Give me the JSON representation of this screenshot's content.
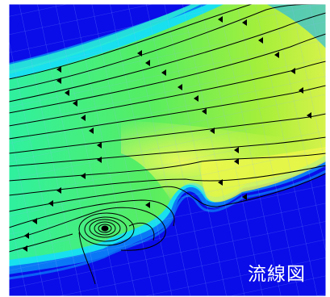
{
  "caption": "流線図",
  "colors": {
    "background": "#0a0de8",
    "colormap": [
      "#0a0de8",
      "#0a3cf0",
      "#0a78f6",
      "#10b4f8",
      "#18e0ee",
      "#28f2b2",
      "#46ee6a",
      "#8cee3c",
      "#c6f03a",
      "#eef84a"
    ],
    "mesh": "#8fb3ff",
    "streamline": "#000000"
  },
  "glyphs": {
    "vortex": "vortex-icon",
    "arrow": "arrowhead-icon"
  }
}
